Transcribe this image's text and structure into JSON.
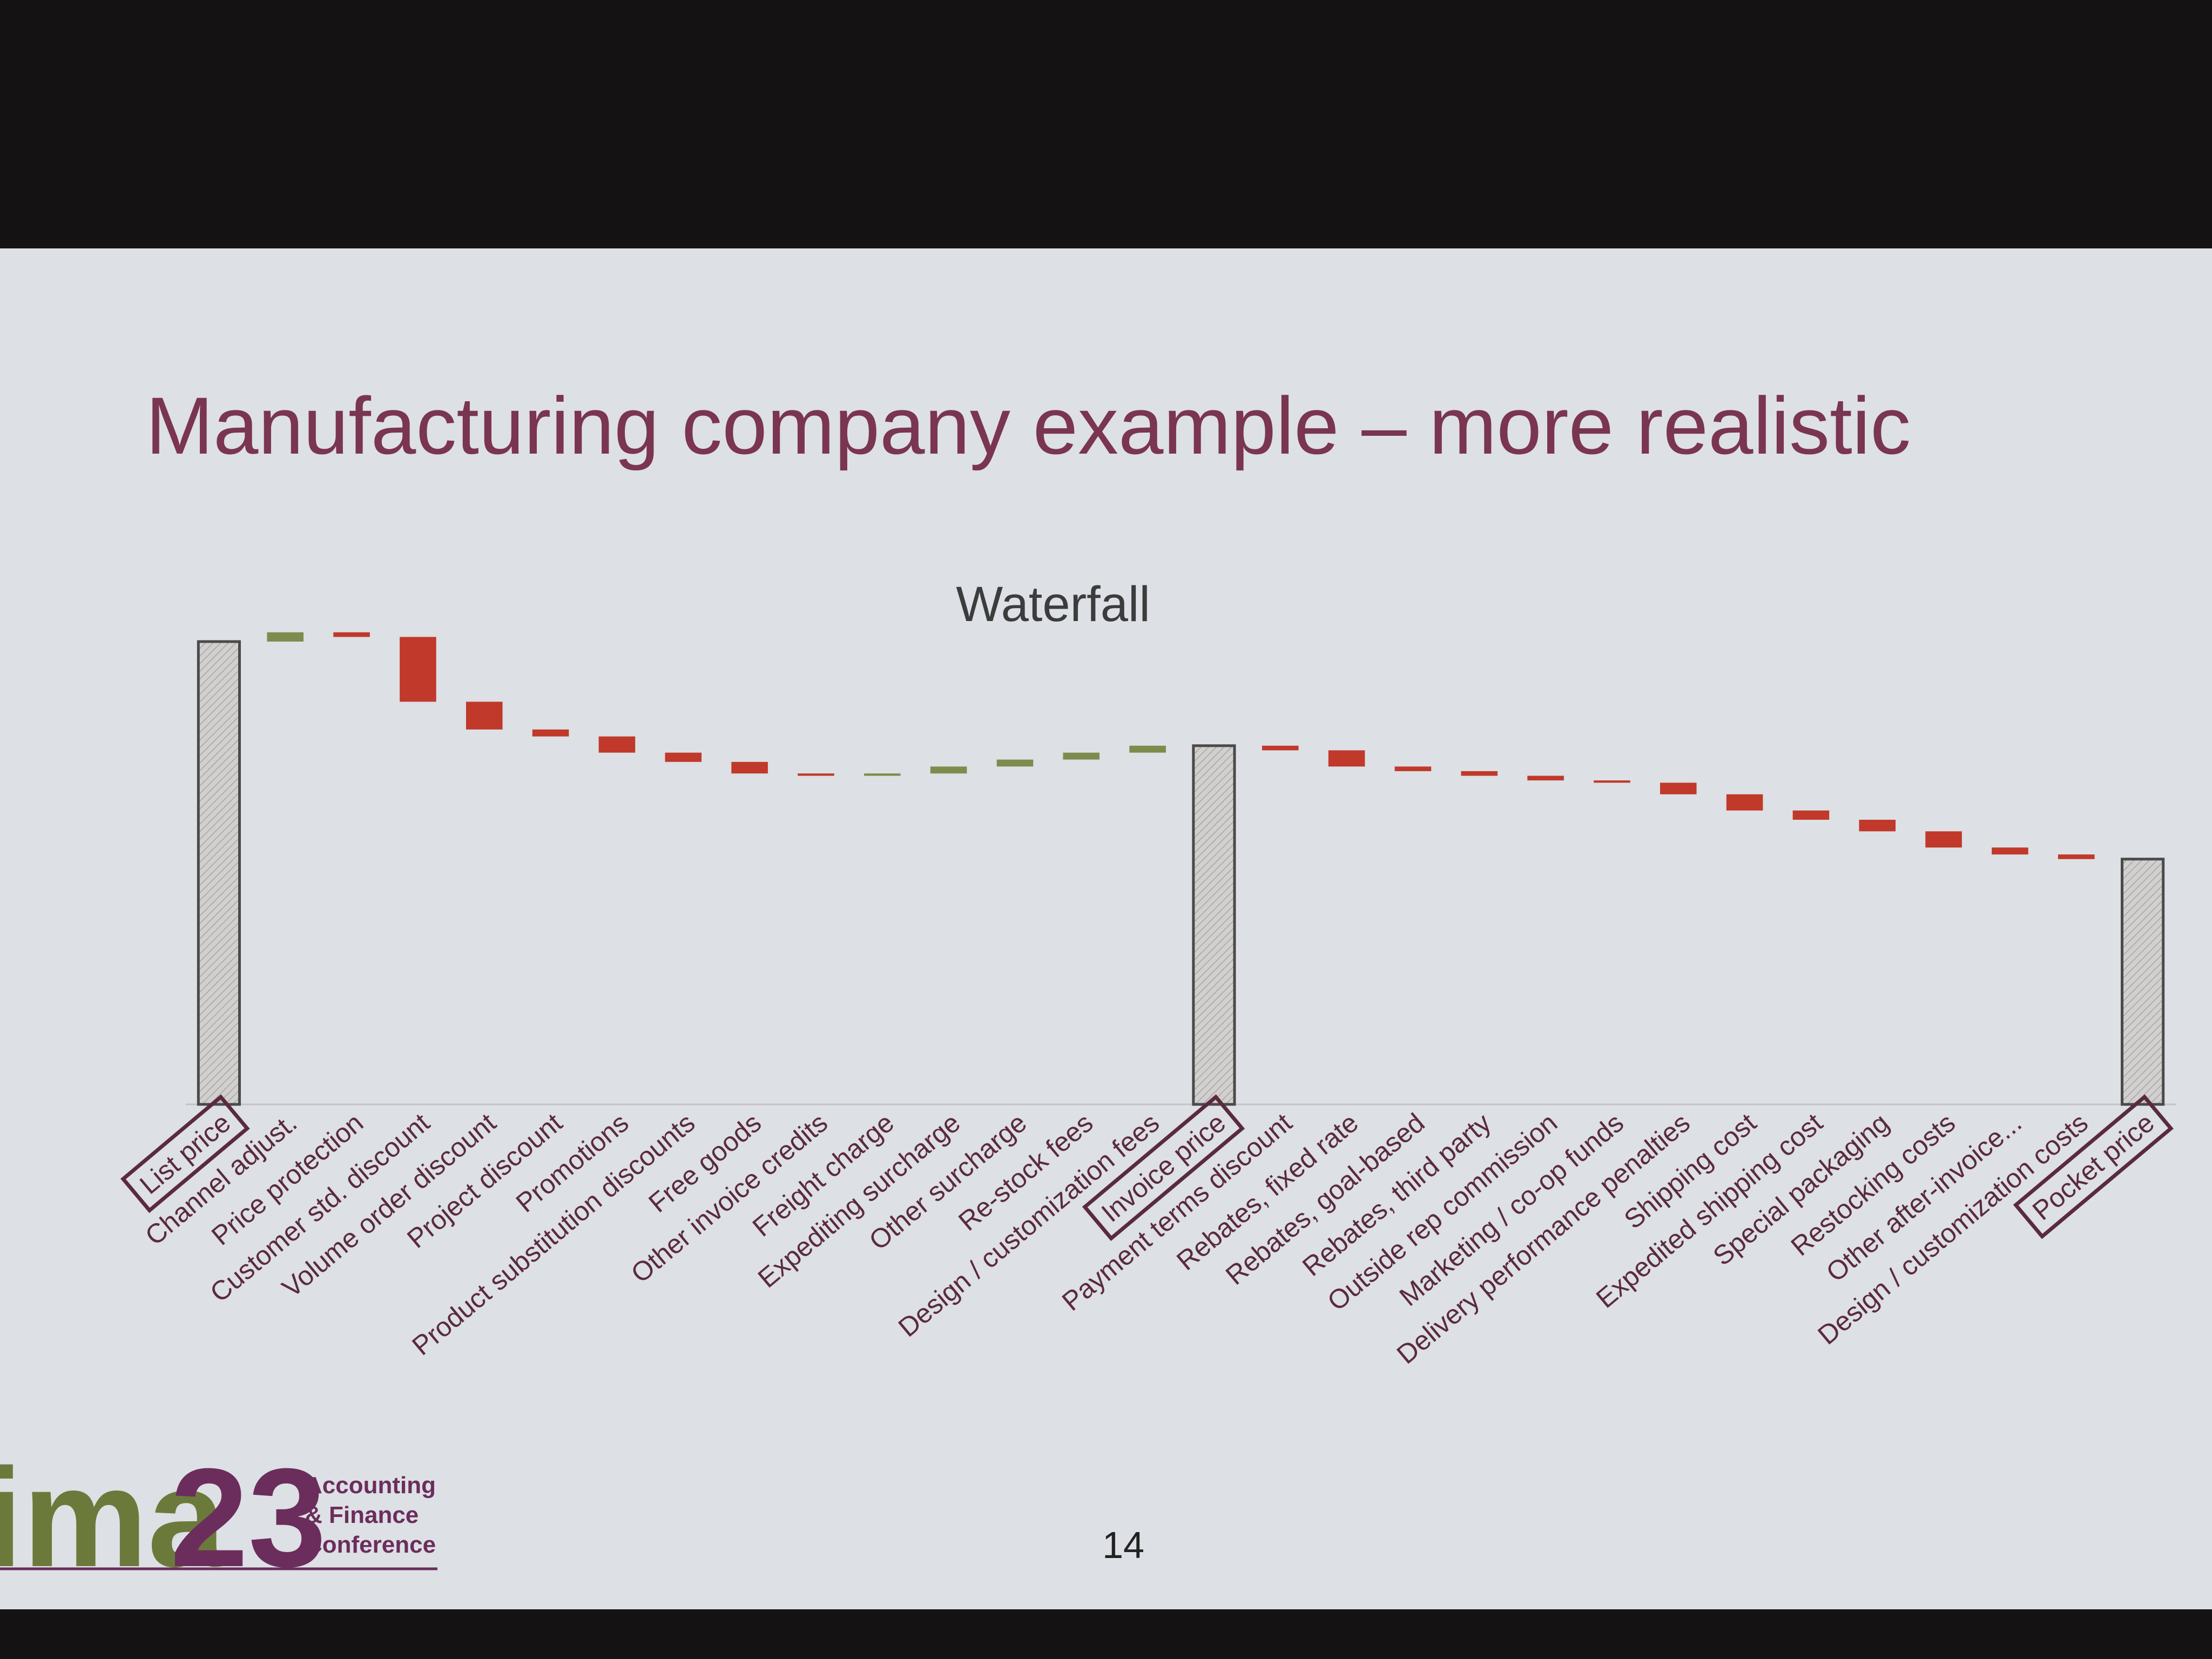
{
  "slide_title": "Manufacturing company example – more realistic",
  "chart_data": {
    "type": "waterfall",
    "title": "Waterfall",
    "categories": [
      "List price",
      "Channel adjust.",
      "Price protection",
      "Customer std. discount",
      "Volume order discount",
      "Project discount",
      "Promotions",
      "Product substitution discounts",
      "Free goods",
      "Other invoice credits",
      "Freight charge",
      "Expediting surcharge",
      "Other surcharge",
      "Re-stock fees",
      "Design / customization fees",
      "Invoice price",
      "Payment terms discount",
      "Rebates, fixed rate",
      "Rebates, goal-based",
      "Rebates, third party",
      "Outside rep commission",
      "Marketing / co-op funds",
      "Delivery performance penalties",
      "Shipping cost",
      "Expedited shipping cost",
      "Special packaging",
      "Restocking costs",
      "Other after-invoice...",
      "Design / customization costs",
      "Pocket price"
    ],
    "values": [
      100,
      2,
      -1,
      -14,
      -6,
      -1.5,
      -3.5,
      -2,
      -2.5,
      -0.5,
      0.5,
      1.5,
      1.5,
      1.5,
      1.5,
      77.5,
      -1,
      -3.5,
      -1,
      -1,
      -1,
      -0.5,
      -2.5,
      -3.5,
      -2,
      -2.5,
      -3.5,
      -1.5,
      -1,
      53
    ],
    "total_indices": [
      0,
      15,
      29
    ],
    "colors": {
      "total": "#cdc9c9",
      "increase": "#7d8c4c",
      "decrease": "#c0392b"
    },
    "ylim": [
      0,
      100
    ]
  },
  "footer": {
    "logo_left": "ima",
    "logo_right": "23",
    "logo_lines": [
      "Accounting",
      "& Finance",
      "Conference"
    ],
    "page_number": "14"
  }
}
